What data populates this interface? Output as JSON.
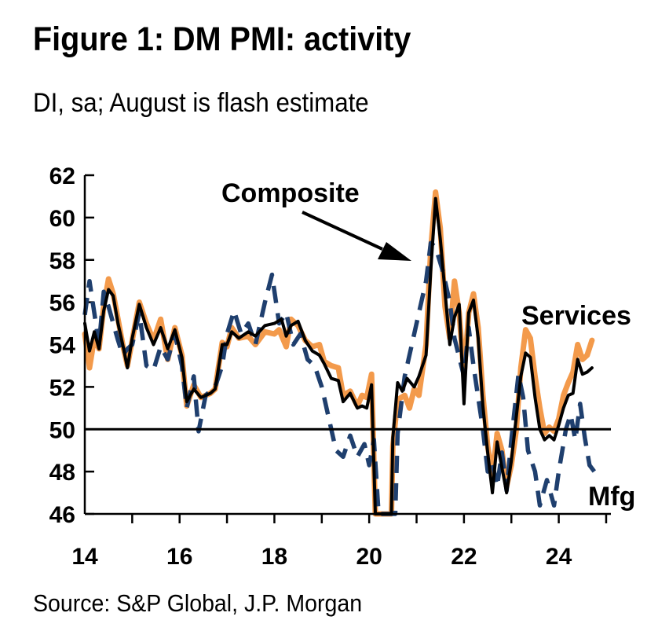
{
  "title": "Figure 1: DM PMI: activity",
  "subtitle": "DI, sa; August is flash estimate",
  "source": "Source: S&P Global, J.P. Morgan",
  "colors": {
    "services": "#F39A4B",
    "manufacturing": "#1F3F6E",
    "composite": "#000000"
  },
  "chart_data": {
    "type": "line",
    "title": "Figure 1: DM PMI: activity",
    "subtitle": "DI, sa; August is flash estimate",
    "xlim": [
      14.0,
      25.1
    ],
    "ylim": [
      46,
      62
    ],
    "x_ticks": [
      14,
      16,
      18,
      20,
      22,
      24
    ],
    "y_ticks": [
      46,
      48,
      50,
      52,
      54,
      56,
      58,
      60,
      62
    ],
    "x_tick_labels": [
      "14",
      "16",
      "18",
      "20",
      "22",
      "24"
    ],
    "y_tick_labels": [
      "46",
      "48",
      "50",
      "52",
      "54",
      "56",
      "58",
      "60",
      "62"
    ],
    "reference_line": 50,
    "grid": false,
    "legend": "none (series labelled directly)",
    "annotations": [
      "Composite",
      "Services",
      "Mfg"
    ],
    "series": [
      {
        "name": "Services",
        "color": "#F39A4B",
        "style": "solid",
        "points": [
          [
            14.0,
            54.5
          ],
          [
            14.1,
            52.9
          ],
          [
            14.2,
            54.3
          ],
          [
            14.3,
            53.8
          ],
          [
            14.4,
            55.8
          ],
          [
            14.5,
            57.1
          ],
          [
            14.6,
            56.4
          ],
          [
            14.7,
            55.2
          ],
          [
            14.8,
            54.0
          ],
          [
            14.9,
            53.0
          ],
          [
            15.0,
            54.2
          ],
          [
            15.15,
            56.0
          ],
          [
            15.3,
            55.0
          ],
          [
            15.45,
            54.2
          ],
          [
            15.6,
            55.2
          ],
          [
            15.75,
            53.3
          ],
          [
            15.9,
            54.8
          ],
          [
            16.05,
            53.5
          ],
          [
            16.15,
            51.1
          ],
          [
            16.3,
            52.1
          ],
          [
            16.45,
            51.5
          ],
          [
            16.65,
            51.7
          ],
          [
            16.75,
            51.9
          ],
          [
            16.9,
            54.1
          ],
          [
            17.0,
            53.9
          ],
          [
            17.1,
            54.8
          ],
          [
            17.25,
            54.3
          ],
          [
            17.45,
            54.4
          ],
          [
            17.6,
            54.0
          ],
          [
            17.8,
            54.6
          ],
          [
            18.0,
            54.5
          ],
          [
            18.1,
            54.7
          ],
          [
            18.25,
            53.9
          ],
          [
            18.35,
            55.2
          ],
          [
            18.5,
            54.9
          ],
          [
            18.65,
            54.2
          ],
          [
            18.8,
            53.9
          ],
          [
            18.95,
            54.0
          ],
          [
            19.05,
            53.2
          ],
          [
            19.2,
            53.0
          ],
          [
            19.35,
            52.9
          ],
          [
            19.45,
            51.6
          ],
          [
            19.6,
            51.8
          ],
          [
            19.75,
            51.1
          ],
          [
            19.85,
            51.6
          ],
          [
            19.95,
            51.5
          ],
          [
            20.05,
            52.6
          ],
          [
            20.13,
            46.0
          ],
          [
            20.47,
            46.0
          ],
          [
            20.5,
            49.2
          ],
          [
            20.6,
            51.4
          ],
          [
            20.75,
            51.6
          ],
          [
            20.85,
            51.0
          ],
          [
            20.95,
            51.9
          ],
          [
            21.05,
            51.6
          ],
          [
            21.2,
            54.0
          ],
          [
            21.3,
            58.5
          ],
          [
            21.4,
            61.2
          ],
          [
            21.5,
            59.5
          ],
          [
            21.6,
            55.8
          ],
          [
            21.7,
            54.3
          ],
          [
            21.8,
            57.0
          ],
          [
            21.9,
            55.5
          ],
          [
            22.0,
            52.5
          ],
          [
            22.1,
            55.5
          ],
          [
            22.2,
            56.4
          ],
          [
            22.3,
            54.8
          ],
          [
            22.4,
            51.6
          ],
          [
            22.5,
            49.2
          ],
          [
            22.6,
            47.8
          ],
          [
            22.7,
            49.8
          ],
          [
            22.8,
            49.0
          ],
          [
            22.9,
            47.3
          ],
          [
            23.0,
            48.3
          ],
          [
            23.1,
            49.9
          ],
          [
            23.2,
            52.9
          ],
          [
            23.3,
            54.7
          ],
          [
            23.4,
            54.3
          ],
          [
            23.5,
            52.5
          ],
          [
            23.6,
            51.0
          ],
          [
            23.7,
            49.8
          ],
          [
            23.8,
            50.1
          ],
          [
            23.9,
            49.9
          ],
          [
            24.0,
            50.5
          ],
          [
            24.1,
            51.6
          ],
          [
            24.2,
            52.2
          ],
          [
            24.3,
            52.7
          ],
          [
            24.4,
            54.0
          ],
          [
            24.5,
            53.3
          ],
          [
            24.6,
            53.5
          ],
          [
            24.7,
            54.2
          ]
        ]
      },
      {
        "name": "Mfg",
        "color": "#1F3F6E",
        "style": "dashed",
        "points": [
          [
            14.0,
            55.4
          ],
          [
            14.1,
            57.0
          ],
          [
            14.2,
            55.5
          ],
          [
            14.3,
            54.0
          ],
          [
            14.4,
            56.5
          ],
          [
            14.5,
            55.8
          ],
          [
            14.6,
            55.0
          ],
          [
            14.7,
            54.2
          ],
          [
            14.8,
            53.5
          ],
          [
            14.9,
            53.8
          ],
          [
            15.0,
            54.0
          ],
          [
            15.15,
            55.5
          ],
          [
            15.3,
            53.0
          ],
          [
            15.45,
            52.8
          ],
          [
            15.6,
            53.9
          ],
          [
            15.75,
            53.3
          ],
          [
            15.9,
            54.5
          ],
          [
            16.05,
            53.0
          ],
          [
            16.15,
            51.0
          ],
          [
            16.3,
            52.5
          ],
          [
            16.4,
            49.9
          ],
          [
            16.55,
            51.6
          ],
          [
            16.75,
            52.0
          ],
          [
            16.9,
            53.0
          ],
          [
            17.0,
            54.5
          ],
          [
            17.15,
            55.6
          ],
          [
            17.3,
            54.5
          ],
          [
            17.45,
            55.0
          ],
          [
            17.6,
            54.0
          ],
          [
            17.8,
            56.0
          ],
          [
            17.95,
            57.3
          ],
          [
            18.1,
            55.0
          ],
          [
            18.25,
            55.5
          ],
          [
            18.4,
            54.0
          ],
          [
            18.55,
            54.5
          ],
          [
            18.7,
            53.3
          ],
          [
            18.85,
            53.0
          ],
          [
            19.0,
            52.0
          ],
          [
            19.15,
            50.5
          ],
          [
            19.3,
            49.0
          ],
          [
            19.45,
            48.7
          ],
          [
            19.6,
            49.7
          ],
          [
            19.75,
            48.7
          ],
          [
            19.9,
            49.3
          ],
          [
            20.0,
            48.3
          ],
          [
            20.1,
            49.5
          ],
          [
            20.2,
            46.0
          ],
          [
            20.55,
            46.0
          ],
          [
            20.6,
            49.8
          ],
          [
            20.75,
            52.5
          ],
          [
            20.9,
            54.0
          ],
          [
            21.05,
            55.5
          ],
          [
            21.2,
            57.0
          ],
          [
            21.3,
            58.8
          ],
          [
            21.4,
            58.6
          ],
          [
            21.55,
            57.5
          ],
          [
            21.7,
            56.0
          ],
          [
            21.8,
            54.3
          ],
          [
            21.9,
            53.4
          ],
          [
            22.0,
            52.5
          ],
          [
            22.1,
            54.8
          ],
          [
            22.2,
            53.0
          ],
          [
            22.3,
            51.5
          ],
          [
            22.4,
            50.0
          ],
          [
            22.5,
            48.0
          ],
          [
            22.6,
            48.4
          ],
          [
            22.7,
            47.3
          ],
          [
            22.8,
            48.9
          ],
          [
            22.9,
            47.1
          ],
          [
            23.0,
            49.5
          ],
          [
            23.15,
            52.6
          ],
          [
            23.25,
            51.5
          ],
          [
            23.35,
            49.0
          ],
          [
            23.5,
            48.0
          ],
          [
            23.6,
            46.4
          ],
          [
            23.75,
            47.6
          ],
          [
            23.9,
            46.4
          ],
          [
            24.0,
            48.0
          ],
          [
            24.15,
            50.0
          ],
          [
            24.25,
            50.7
          ],
          [
            24.35,
            49.5
          ],
          [
            24.45,
            51.2
          ],
          [
            24.55,
            49.6
          ],
          [
            24.65,
            48.3
          ],
          [
            24.75,
            48.0
          ]
        ]
      },
      {
        "name": "Composite",
        "color": "#000000",
        "style": "solid",
        "points": [
          [
            14.0,
            55.0
          ],
          [
            14.1,
            53.7
          ],
          [
            14.2,
            54.6
          ],
          [
            14.3,
            53.8
          ],
          [
            14.4,
            55.6
          ],
          [
            14.5,
            56.6
          ],
          [
            14.6,
            56.3
          ],
          [
            14.7,
            55.0
          ],
          [
            14.8,
            54.0
          ],
          [
            14.9,
            52.9
          ],
          [
            15.0,
            54.3
          ],
          [
            15.15,
            55.9
          ],
          [
            15.3,
            54.8
          ],
          [
            15.45,
            54.0
          ],
          [
            15.6,
            54.8
          ],
          [
            15.75,
            53.8
          ],
          [
            15.9,
            54.7
          ],
          [
            16.05,
            53.4
          ],
          [
            16.15,
            51.3
          ],
          [
            16.3,
            51.9
          ],
          [
            16.45,
            51.5
          ],
          [
            16.65,
            51.7
          ],
          [
            16.75,
            51.9
          ],
          [
            16.9,
            54.0
          ],
          [
            17.0,
            54.0
          ],
          [
            17.1,
            54.6
          ],
          [
            17.25,
            54.3
          ],
          [
            17.45,
            54.6
          ],
          [
            17.6,
            54.4
          ],
          [
            17.8,
            54.9
          ],
          [
            18.0,
            55.0
          ],
          [
            18.15,
            55.2
          ],
          [
            18.25,
            54.4
          ],
          [
            18.35,
            54.9
          ],
          [
            18.5,
            55.1
          ],
          [
            18.65,
            54.2
          ],
          [
            18.8,
            53.7
          ],
          [
            18.95,
            53.5
          ],
          [
            19.05,
            53.1
          ],
          [
            19.2,
            52.4
          ],
          [
            19.35,
            52.3
          ],
          [
            19.45,
            51.3
          ],
          [
            19.6,
            51.7
          ],
          [
            19.75,
            51.0
          ],
          [
            19.85,
            51.1
          ],
          [
            19.95,
            51.0
          ],
          [
            20.05,
            52.1
          ],
          [
            20.13,
            46.0
          ],
          [
            20.47,
            46.0
          ],
          [
            20.5,
            49.6
          ],
          [
            20.6,
            52.2
          ],
          [
            20.7,
            51.8
          ],
          [
            20.8,
            52.4
          ],
          [
            20.95,
            52.0
          ],
          [
            21.05,
            52.5
          ],
          [
            21.2,
            53.5
          ],
          [
            21.3,
            57.5
          ],
          [
            21.4,
            60.9
          ],
          [
            21.5,
            59.0
          ],
          [
            21.6,
            56.5
          ],
          [
            21.7,
            54.0
          ],
          [
            21.8,
            55.3
          ],
          [
            21.9,
            55.9
          ],
          [
            22.0,
            51.2
          ],
          [
            22.1,
            55.5
          ],
          [
            22.2,
            56.1
          ],
          [
            22.3,
            54.3
          ],
          [
            22.4,
            51.1
          ],
          [
            22.5,
            48.9
          ],
          [
            22.6,
            47.0
          ],
          [
            22.7,
            49.4
          ],
          [
            22.8,
            48.2
          ],
          [
            22.9,
            47.0
          ],
          [
            23.0,
            48.5
          ],
          [
            23.1,
            50.5
          ],
          [
            23.2,
            52.5
          ],
          [
            23.3,
            53.6
          ],
          [
            23.4,
            53.4
          ],
          [
            23.5,
            51.5
          ],
          [
            23.6,
            50.0
          ],
          [
            23.7,
            49.5
          ],
          [
            23.8,
            49.7
          ],
          [
            23.9,
            49.5
          ],
          [
            24.0,
            50.2
          ],
          [
            24.1,
            51.0
          ],
          [
            24.2,
            51.6
          ],
          [
            24.3,
            51.7
          ],
          [
            24.4,
            53.3
          ],
          [
            24.5,
            52.6
          ],
          [
            24.6,
            52.7
          ],
          [
            24.7,
            52.9
          ]
        ]
      }
    ]
  },
  "labels": {
    "composite": "Composite",
    "services": "Services",
    "mfg": "Mfg"
  }
}
